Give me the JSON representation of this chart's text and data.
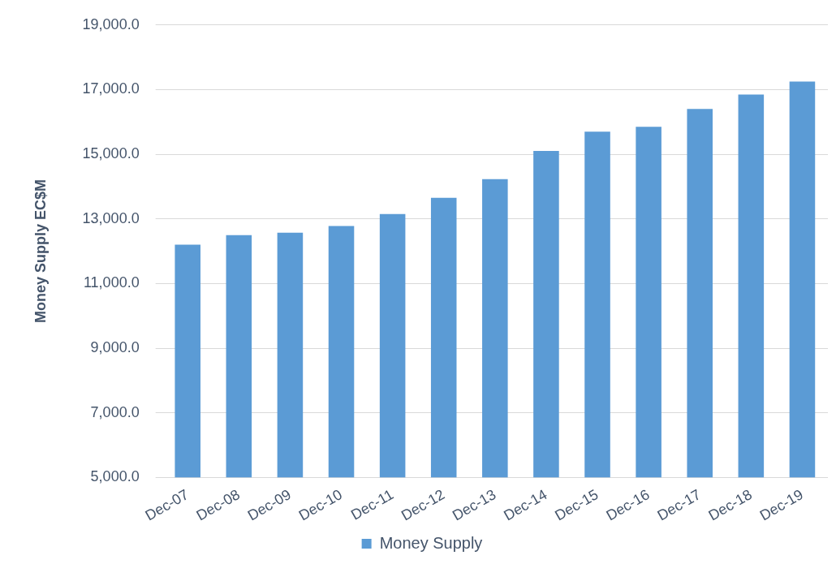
{
  "chart_data": {
    "type": "bar",
    "ylabel": "Money Supply EC$M",
    "categories": [
      "Dec-07",
      "Dec-08",
      "Dec-09",
      "Dec-10",
      "Dec-11",
      "Dec-12",
      "Dec-13",
      "Dec-14",
      "Dec-15",
      "Dec-16",
      "Dec-17",
      "Dec-18",
      "Dec-19"
    ],
    "series": [
      {
        "name": "Money Supply",
        "color": "#5b9bd5",
        "values": [
          12200,
          12500,
          12570,
          12780,
          13150,
          13650,
          14230,
          15100,
          15700,
          15850,
          16400,
          16850,
          17250
        ]
      }
    ],
    "ylim": [
      5000,
      19000
    ],
    "yticks": [
      {
        "value": 5000,
        "label": "5,000.0"
      },
      {
        "value": 7000,
        "label": "7,000.0"
      },
      {
        "value": 9000,
        "label": "9,000.0"
      },
      {
        "value": 11000,
        "label": "11,000.0"
      },
      {
        "value": 13000,
        "label": "13,000.0"
      },
      {
        "value": 15000,
        "label": "15,000.0"
      },
      {
        "value": 17000,
        "label": "17,000.0"
      },
      {
        "value": 19000,
        "label": "19,000.0"
      }
    ],
    "grid": "y",
    "legend": "bottom"
  }
}
